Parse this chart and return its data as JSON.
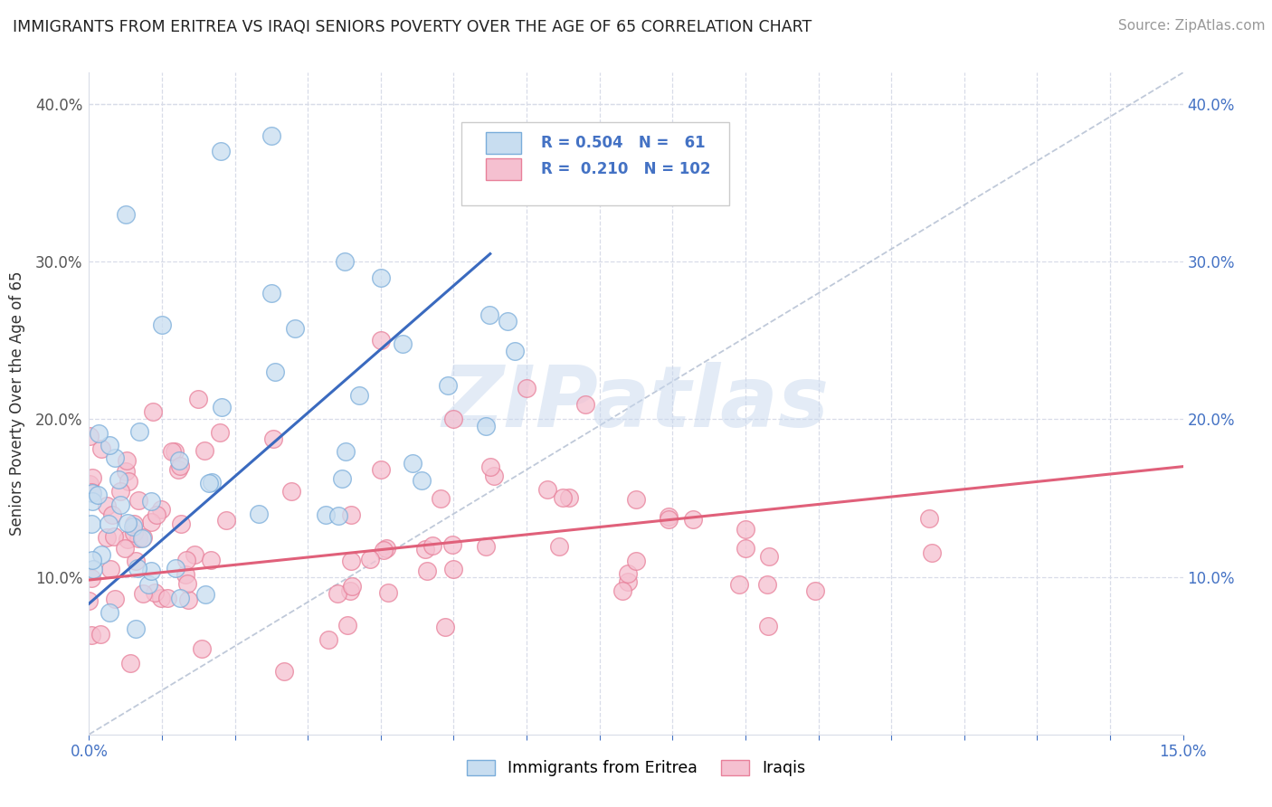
{
  "title": "IMMIGRANTS FROM ERITREA VS IRAQI SENIORS POVERTY OVER THE AGE OF 65 CORRELATION CHART",
  "source": "Source: ZipAtlas.com",
  "ylabel": "Seniors Poverty Over the Age of 65",
  "xmin": 0.0,
  "xmax": 0.15,
  "ymin": 0.0,
  "ymax": 0.42,
  "background_color": "#ffffff",
  "watermark_text": "ZIPatlas",
  "color_eritrea_fill": "#c8ddf0",
  "color_eritrea_edge": "#7aadda",
  "color_iraqi_fill": "#f5c0d0",
  "color_iraqi_edge": "#e8809a",
  "line_color_eritrea": "#3a6abf",
  "line_color_iraqi": "#e0607a",
  "dash_line_color": "#b0bcd0",
  "eritrea_line_x": [
    0.0,
    0.055
  ],
  "eritrea_line_y": [
    0.083,
    0.305
  ],
  "iraqi_line_x": [
    0.0,
    0.15
  ],
  "iraqi_line_y": [
    0.098,
    0.17
  ],
  "dash_line_x": [
    0.0,
    0.15
  ],
  "dash_line_y": [
    0.0,
    0.42
  ],
  "grid_color": "#d8dce8",
  "tick_color_blue": "#4472c4",
  "ytick_positions": [
    0.0,
    0.1,
    0.2,
    0.3,
    0.4
  ],
  "ytick_labels_left": [
    "",
    "10.0%",
    "20.0%",
    "30.0%",
    "40.0%"
  ],
  "ytick_labels_right": [
    "",
    "10.0%",
    "20.0%",
    "30.0%",
    "40.0%"
  ],
  "xtick_count": 16,
  "xtick_label_first": "0.0%",
  "xtick_label_last": "15.0%"
}
